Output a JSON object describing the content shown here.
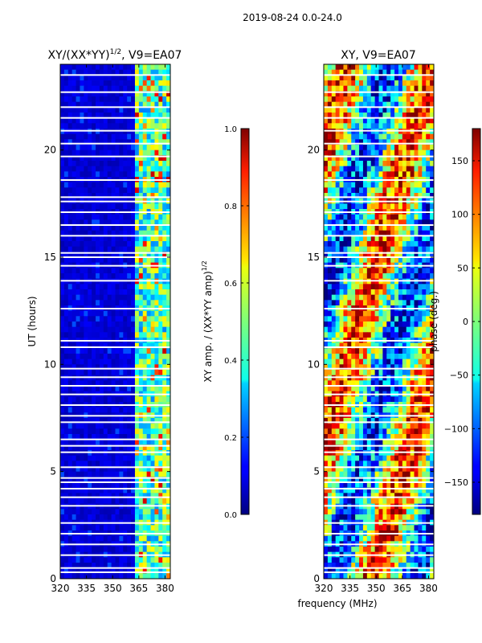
{
  "figure_title": "2019-08-24 0.0-24.0",
  "shared_xlabel": "frequency (MHz)",
  "chart_data": [
    {
      "type": "heatmap",
      "title": "XY/(XX*YY)",
      "title_sup": "1/2",
      "title_suffix": ", V9=EA07",
      "xlabel": "",
      "ylabel": "UT (hours)",
      "xlim": [
        320,
        383
      ],
      "ylim": [
        0,
        24
      ],
      "xticks": [
        320,
        335,
        350,
        365,
        380
      ],
      "yticks": [
        0,
        5,
        10,
        15,
        20
      ],
      "colormap": "jet",
      "colorbar": {
        "label": "XY amp. / (XX*YY amp)",
        "label_sup": "1/2",
        "range": [
          0.0,
          1.0
        ],
        "ticks": [
          "0.0",
          "0.2",
          "0.4",
          "0.6",
          "0.8",
          "1.0"
        ],
        "tick_values": [
          0.0,
          0.2,
          0.4,
          0.6,
          0.8,
          1.0
        ]
      },
      "description_values": {
        "low_band_level": 0.08,
        "high_band_range_mhz": [
          363,
          383
        ],
        "high_band_level": 0.45
      },
      "flagged_ut_hours": [
        0.3,
        0.5,
        1.1,
        1.6,
        2.1,
        2.6,
        3.4,
        3.8,
        4.2,
        4.5,
        4.7,
        5.2,
        5.9,
        6.2,
        6.5,
        7.3,
        7.6,
        8.1,
        8.6,
        9.0,
        9.4,
        9.8,
        10.8,
        11.1,
        12.6,
        13.9,
        14.6,
        15.0,
        15.2,
        16.0,
        16.5,
        17.1,
        17.6,
        17.8,
        18.6,
        19.7,
        20.3,
        20.9,
        21.5,
        22.0,
        22.7,
        23.5
      ]
    },
    {
      "type": "heatmap",
      "title": "XY, V9=EA07",
      "xlabel": "",
      "ylabel": "",
      "xlim": [
        320,
        383
      ],
      "ylim": [
        0,
        24
      ],
      "xticks": [
        320,
        335,
        350,
        365,
        380
      ],
      "yticks": [
        0,
        5,
        10,
        15,
        20
      ],
      "colormap": "jet",
      "colorbar": {
        "label": "phase (deg.)",
        "range": [
          -180,
          180
        ],
        "ticks": [
          "−150",
          "−100",
          "−50",
          "0",
          "50",
          "100",
          "150"
        ],
        "tick_values": [
          -150,
          -100,
          -50,
          0,
          50,
          100,
          150
        ]
      },
      "flagged_ut_hours": [
        0.3,
        0.5,
        1.1,
        1.6,
        2.1,
        2.6,
        3.4,
        3.8,
        4.2,
        4.5,
        4.7,
        5.2,
        5.9,
        6.2,
        6.5,
        7.3,
        7.6,
        8.1,
        8.6,
        9.0,
        9.4,
        9.8,
        10.8,
        11.1,
        12.6,
        13.9,
        14.6,
        15.0,
        15.2,
        16.0,
        16.5,
        17.1,
        17.6,
        17.8,
        18.6,
        19.7,
        20.3,
        20.9,
        21.5,
        22.0,
        22.7,
        23.5
      ]
    }
  ]
}
